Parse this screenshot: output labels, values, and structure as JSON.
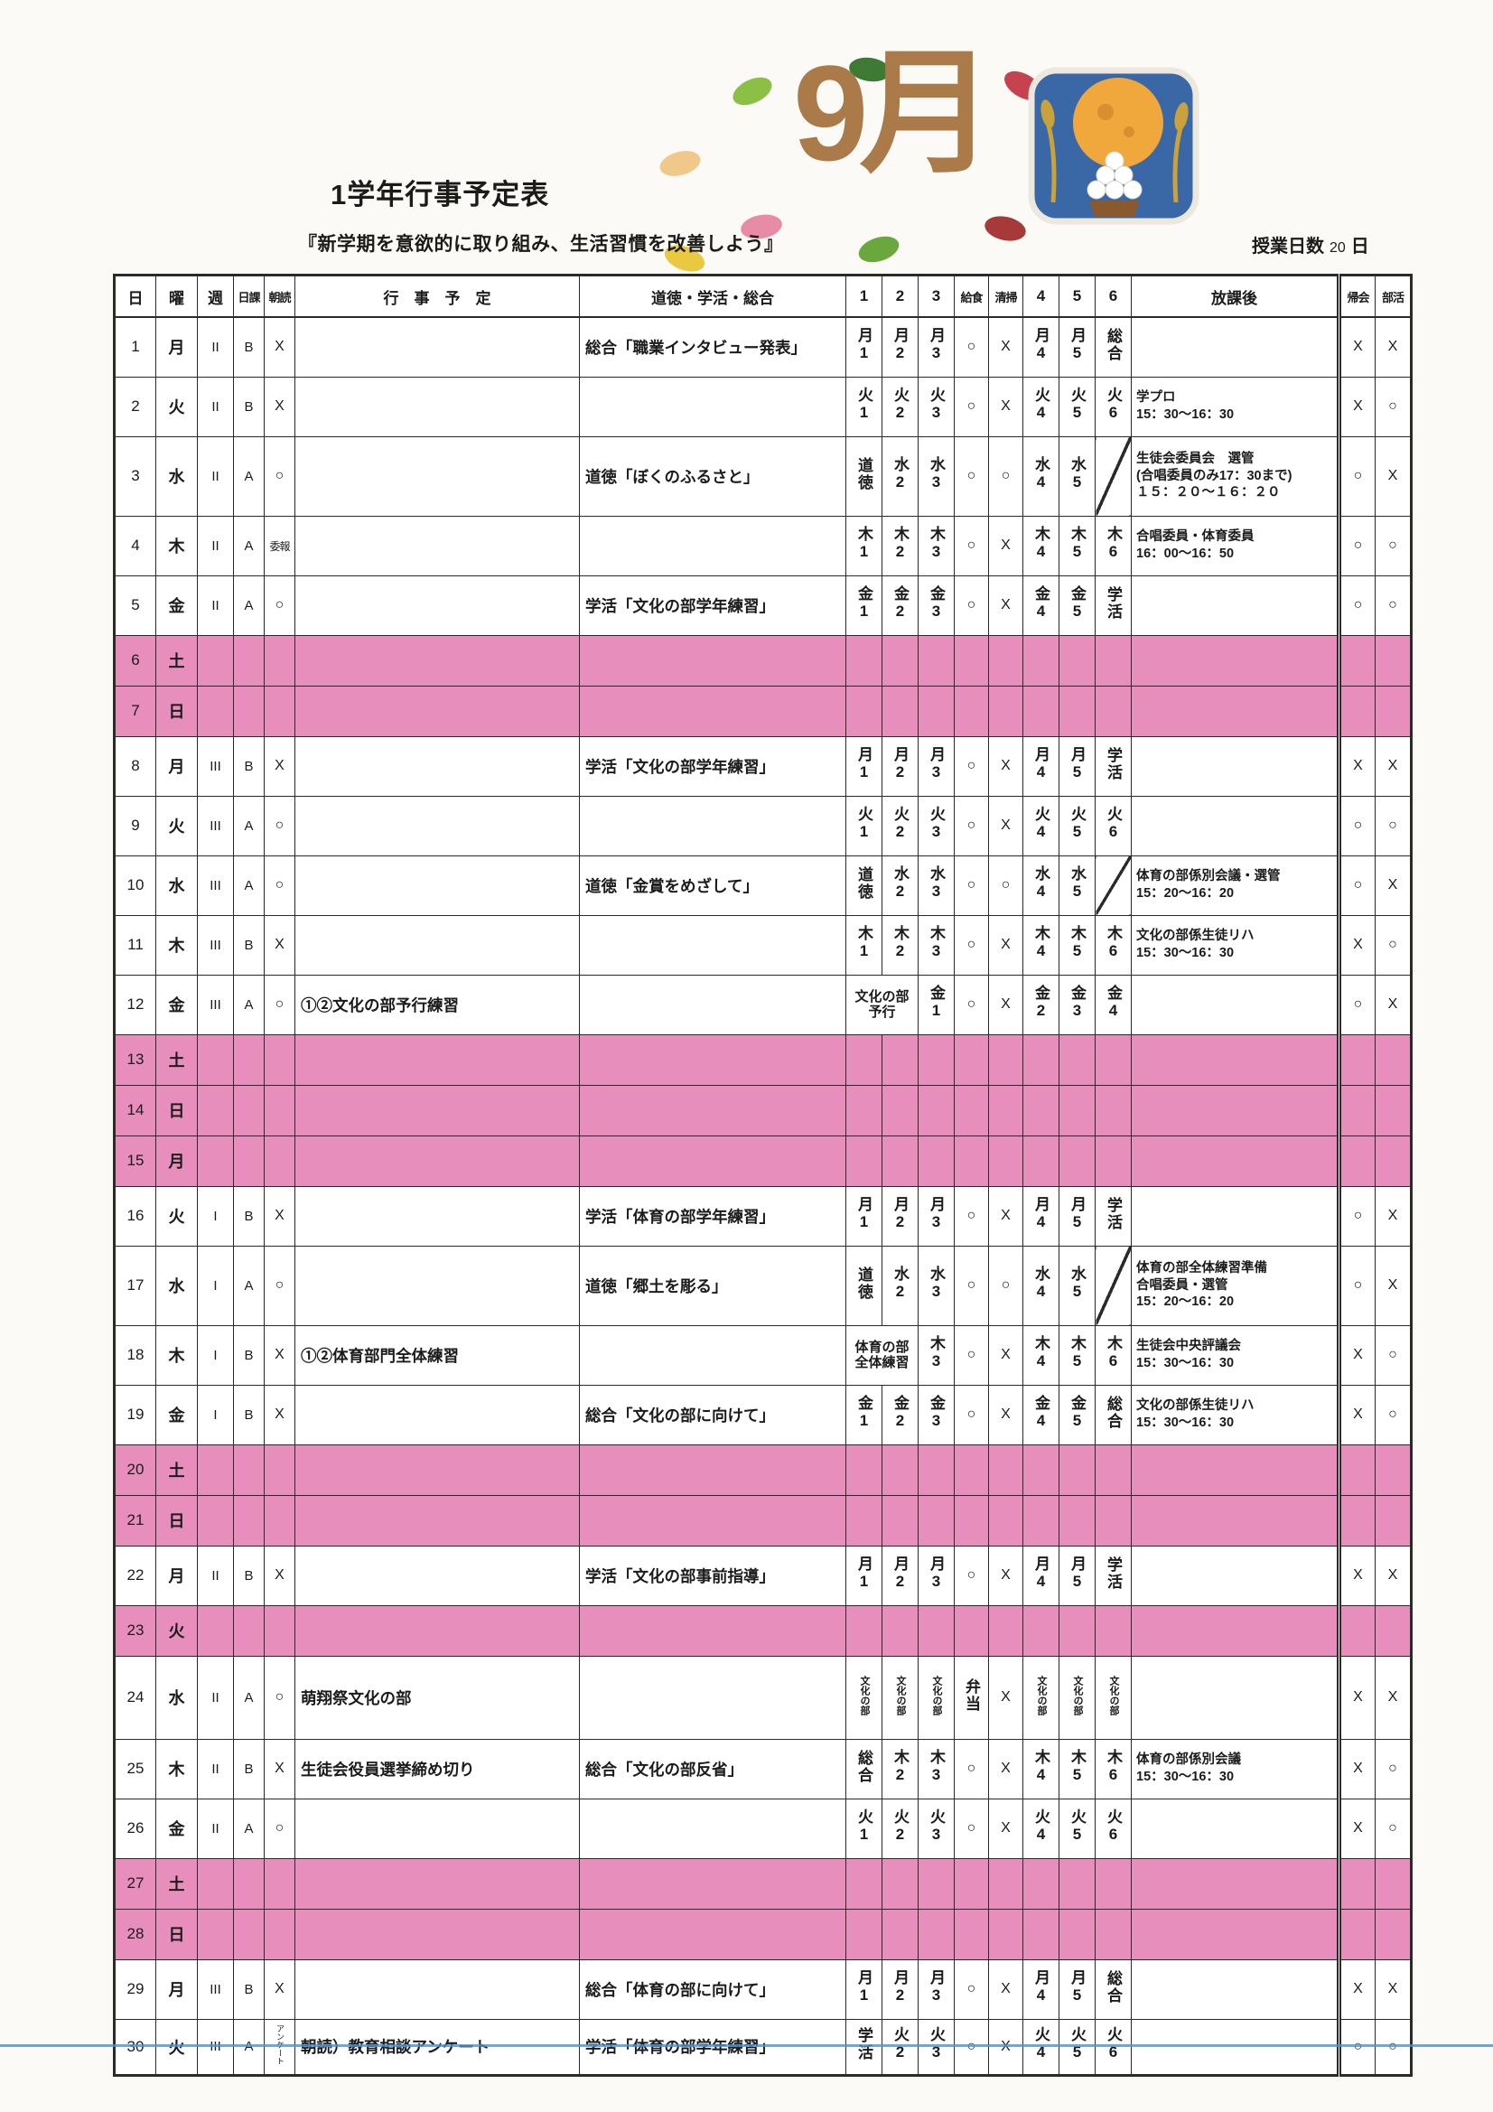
{
  "page": {
    "title": "1学年行事予定表",
    "subtitle": "『新学期を意欲的に取り組み、生活習慣を改善しよう』",
    "month_label": "9月",
    "class_days_label": "授業日数",
    "class_days_value": "20",
    "class_days_unit": "日"
  },
  "colors": {
    "weekend_pink": "#e78ebd",
    "title_brown": "#aa7a49",
    "scan_blue": "#4f8fd4",
    "illus_blue": "#3a67a5",
    "moon_yellow": "#f0a83c",
    "grid": "#2a2a28"
  },
  "table": {
    "headers": [
      "日",
      "曜",
      "週",
      "日課",
      "朝読",
      "行　事　予　定",
      "道徳・学活・総合",
      "1",
      "2",
      "3",
      "給食",
      "清掃",
      "4",
      "5",
      "6",
      "放課後",
      "帰会",
      "部活"
    ],
    "rows": [
      {
        "day": "1",
        "yobi": "月",
        "week": "II",
        "nikka": "B",
        "asadoku": "X",
        "event": "",
        "moral": "総合「職業インタビュー発表」",
        "am": [
          "月1",
          "月2",
          "月3"
        ],
        "kyushoku": "○",
        "seiso": "X",
        "pm": [
          "月4",
          "月5",
          "総合"
        ],
        "after": "",
        "kikai": "X",
        "bukatsu": "X"
      },
      {
        "day": "2",
        "yobi": "火",
        "week": "II",
        "nikka": "B",
        "asadoku": "X",
        "event": "",
        "moral": "",
        "am": [
          "火1",
          "火2",
          "火3"
        ],
        "kyushoku": "○",
        "seiso": "X",
        "pm": [
          "火4",
          "火5",
          "火6"
        ],
        "after": "学プロ\n15：30～16：30",
        "kikai": "X",
        "bukatsu": "○"
      },
      {
        "day": "3",
        "yobi": "水",
        "week": "II",
        "nikka": "A",
        "asadoku": "○",
        "event": "",
        "moral": "道徳「ぼくのふるさと」",
        "am": [
          "道徳",
          "水2",
          "水3"
        ],
        "kyushoku": "○",
        "seiso": "○",
        "pm": [
          "水4",
          "水5",
          "DIAG"
        ],
        "after": "生徒会委員会　選管\n(合唱委員のみ17：30まで)\n１５：２０～１６：２０",
        "kikai": "○",
        "bukatsu": "X"
      },
      {
        "day": "4",
        "yobi": "木",
        "week": "II",
        "nikka": "A",
        "asadoku": "委報",
        "event": "",
        "moral": "",
        "am": [
          "木1",
          "木2",
          "木3"
        ],
        "kyushoku": "○",
        "seiso": "X",
        "pm": [
          "木4",
          "木5",
          "木6"
        ],
        "after": "合唱委員・体育委員\n16：00～16：50",
        "kikai": "○",
        "bukatsu": "○"
      },
      {
        "day": "5",
        "yobi": "金",
        "week": "II",
        "nikka": "A",
        "asadoku": "○",
        "event": "",
        "moral": "学活「文化の部学年練習」",
        "am": [
          "金1",
          "金2",
          "金3"
        ],
        "kyushoku": "○",
        "seiso": "X",
        "pm": [
          "金4",
          "金5",
          "学活"
        ],
        "after": "",
        "kikai": "○",
        "bukatsu": "○"
      },
      {
        "day": "6",
        "yobi": "土",
        "pink": true
      },
      {
        "day": "7",
        "yobi": "日",
        "pink": true
      },
      {
        "day": "8",
        "yobi": "月",
        "week": "III",
        "nikka": "B",
        "asadoku": "X",
        "event": "",
        "moral": "学活「文化の部学年練習」",
        "am": [
          "月1",
          "月2",
          "月3"
        ],
        "kyushoku": "○",
        "seiso": "X",
        "pm": [
          "月4",
          "月5",
          "学活"
        ],
        "after": "",
        "kikai": "X",
        "bukatsu": "X"
      },
      {
        "day": "9",
        "yobi": "火",
        "week": "III",
        "nikka": "A",
        "asadoku": "○",
        "event": "",
        "moral": "",
        "am": [
          "火1",
          "火2",
          "火3"
        ],
        "kyushoku": "○",
        "seiso": "X",
        "pm": [
          "火4",
          "火5",
          "火6"
        ],
        "after": "",
        "kikai": "○",
        "bukatsu": "○"
      },
      {
        "day": "10",
        "yobi": "水",
        "week": "III",
        "nikka": "A",
        "asadoku": "○",
        "event": "",
        "moral": "道徳「金賞をめざして」",
        "am": [
          "道徳",
          "水2",
          "水3"
        ],
        "kyushoku": "○",
        "seiso": "○",
        "pm": [
          "水4",
          "水5",
          "DIAG"
        ],
        "after": "体育の部係別会議・選管\n15：20～16：20",
        "kikai": "○",
        "bukatsu": "X"
      },
      {
        "day": "11",
        "yobi": "木",
        "week": "III",
        "nikka": "B",
        "asadoku": "X",
        "event": "",
        "moral": "",
        "am": [
          "木1",
          "木2",
          "木3"
        ],
        "kyushoku": "○",
        "seiso": "X",
        "pm": [
          "木4",
          "木5",
          "木6"
        ],
        "after": "文化の部係生徒リハ\n15：30～16：30",
        "kikai": "X",
        "bukatsu": "○"
      },
      {
        "day": "12",
        "yobi": "金",
        "week": "III",
        "nikka": "A",
        "asadoku": "○",
        "event": "①②文化の部予行練習",
        "moral": "",
        "am_merged": "文化の部\n予行",
        "am_p3": "金1",
        "kyushoku": "○",
        "seiso": "X",
        "pm": [
          "金2",
          "金3",
          "金4"
        ],
        "after": "",
        "kikai": "○",
        "bukatsu": "X"
      },
      {
        "day": "13",
        "yobi": "土",
        "pink": true
      },
      {
        "day": "14",
        "yobi": "日",
        "pink": true
      },
      {
        "day": "15",
        "yobi": "月",
        "pink": true
      },
      {
        "day": "16",
        "yobi": "火",
        "week": "I",
        "nikka": "B",
        "asadoku": "X",
        "event": "",
        "moral": "学活「体育の部学年練習」",
        "am": [
          "月1",
          "月2",
          "月3"
        ],
        "kyushoku": "○",
        "seiso": "X",
        "pm": [
          "月4",
          "月5",
          "学活"
        ],
        "after": "",
        "kikai": "○",
        "bukatsu": "X"
      },
      {
        "day": "17",
        "yobi": "水",
        "week": "I",
        "nikka": "A",
        "asadoku": "○",
        "event": "",
        "moral": "道徳「郷土を彫る」",
        "am": [
          "道徳",
          "水2",
          "水3"
        ],
        "kyushoku": "○",
        "seiso": "○",
        "pm": [
          "水4",
          "水5",
          "DIAG"
        ],
        "after": "体育の部全体練習準備\n合唱委員・選管\n15：20～16：20",
        "kikai": "○",
        "bukatsu": "X"
      },
      {
        "day": "18",
        "yobi": "木",
        "week": "I",
        "nikka": "B",
        "asadoku": "X",
        "event": "①②体育部門全体練習",
        "moral": "",
        "am_merged": "体育の部\n全体練習",
        "am_p3": "木3",
        "kyushoku": "○",
        "seiso": "X",
        "pm": [
          "木4",
          "木5",
          "木6"
        ],
        "after": "生徒会中央評議会\n15：30～16：30",
        "kikai": "X",
        "bukatsu": "○"
      },
      {
        "day": "19",
        "yobi": "金",
        "week": "I",
        "nikka": "B",
        "asadoku": "X",
        "event": "",
        "moral": "総合「文化の部に向けて」",
        "am": [
          "金1",
          "金2",
          "金3"
        ],
        "kyushoku": "○",
        "seiso": "X",
        "pm": [
          "金4",
          "金5",
          "総合"
        ],
        "after": "文化の部係生徒リハ\n15：30～16：30",
        "kikai": "X",
        "bukatsu": "○"
      },
      {
        "day": "20",
        "yobi": "土",
        "pink": true
      },
      {
        "day": "21",
        "yobi": "日",
        "pink": true
      },
      {
        "day": "22",
        "yobi": "月",
        "week": "II",
        "nikka": "B",
        "asadoku": "X",
        "event": "",
        "moral": "学活「文化の部事前指導」",
        "am": [
          "月1",
          "月2",
          "月3"
        ],
        "kyushoku": "○",
        "seiso": "X",
        "pm": [
          "月4",
          "月5",
          "学活"
        ],
        "after": "",
        "kikai": "X",
        "bukatsu": "X"
      },
      {
        "day": "23",
        "yobi": "火",
        "pink": true
      },
      {
        "day": "24",
        "yobi": "水",
        "week": "II",
        "nikka": "A",
        "asadoku": "○",
        "event": "萌翔祭文化の部",
        "moral": "",
        "am": [
          "文化の部",
          "文化の部",
          "文化の部"
        ],
        "am_small": true,
        "kyushoku": "弁当",
        "kyushoku_vert": true,
        "seiso": "X",
        "pm": [
          "文化の部",
          "文化の部",
          "文化の部"
        ],
        "pm_small": true,
        "after": "",
        "kikai": "X",
        "bukatsu": "X"
      },
      {
        "day": "25",
        "yobi": "木",
        "week": "II",
        "nikka": "B",
        "asadoku": "X",
        "event": "生徒会役員選挙締め切り",
        "moral": "総合「文化の部反省」",
        "am": [
          "総合",
          "木2",
          "木3"
        ],
        "kyushoku": "○",
        "seiso": "X",
        "pm": [
          "木4",
          "木5",
          "木6"
        ],
        "after": "体育の部係別会議\n15：30～16：30",
        "kikai": "X",
        "bukatsu": "○"
      },
      {
        "day": "26",
        "yobi": "金",
        "week": "II",
        "nikka": "A",
        "asadoku": "○",
        "event": "",
        "moral": "",
        "am": [
          "火1",
          "火2",
          "火3"
        ],
        "kyushoku": "○",
        "seiso": "X",
        "pm": [
          "火4",
          "火5",
          "火6"
        ],
        "after": "",
        "kikai": "X",
        "bukatsu": "○"
      },
      {
        "day": "27",
        "yobi": "土",
        "pink": true
      },
      {
        "day": "28",
        "yobi": "日",
        "pink": true
      },
      {
        "day": "29",
        "yobi": "月",
        "week": "III",
        "nikka": "B",
        "asadoku": "X",
        "event": "",
        "moral": "総合「体育の部に向けて」",
        "am": [
          "月1",
          "月2",
          "月3"
        ],
        "kyushoku": "○",
        "seiso": "X",
        "pm": [
          "月4",
          "月5",
          "総合"
        ],
        "after": "",
        "kikai": "X",
        "bukatsu": "X"
      },
      {
        "day": "30",
        "yobi": "火",
        "week": "III",
        "nikka": "A",
        "asadoku": "アンケート",
        "asadoku_small": true,
        "event": "朝読）教育相談アンケート",
        "moral": "学活「体育の部学年練習」",
        "am": [
          "学活",
          "火2",
          "火3"
        ],
        "kyushoku": "○",
        "seiso": "X",
        "pm": [
          "火4",
          "火5",
          "火6"
        ],
        "after": "",
        "kikai": "○",
        "bukatsu": "○"
      }
    ]
  }
}
